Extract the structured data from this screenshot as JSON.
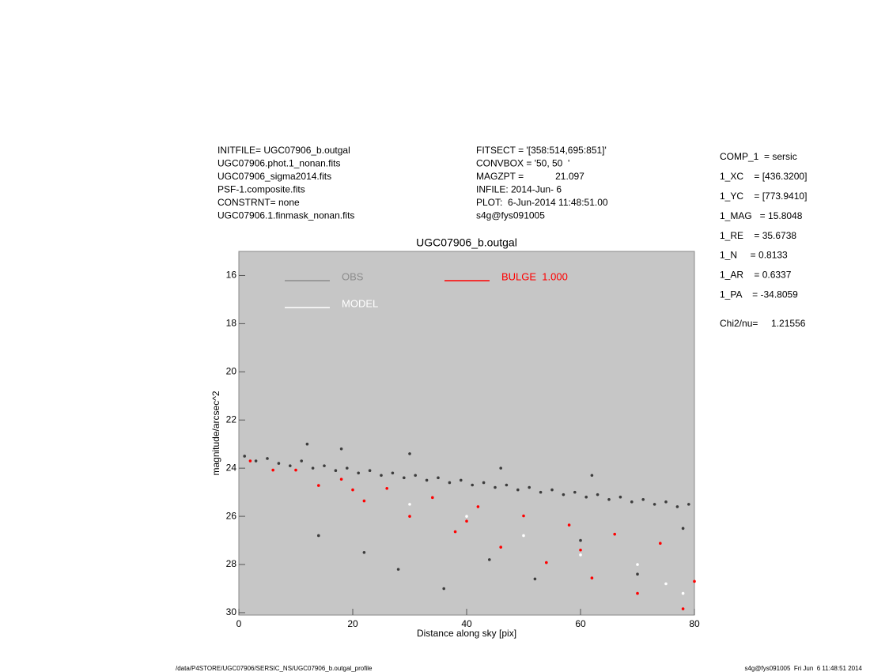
{
  "header": {
    "left": [
      "INITFILE= UGC07906_b.outgal",
      "UGC07906.phot.1_nonan.fits",
      "UGC07906_sigma2014.fits",
      "PSF-1.composite.fits",
      "CONSTRNT= none",
      "UGC07906.1.finmask_nonan.fits"
    ],
    "middle": [
      "FITSECT = '[358:514,695:851]'",
      "CONVBOX = '50, 50  '",
      "MAGZPT =            21.097",
      "INFILE: 2014-Jun- 6",
      "PLOT:  6-Jun-2014 11:48:51.00",
      "s4g@fys091005"
    ]
  },
  "params": [
    "COMP_1  = sersic",
    "1_XC    = [436.3200]",
    "1_YC    = [773.9410]",
    "1_MAG   = 15.8048",
    "1_RE    = 35.6738",
    "1_N     = 0.8133",
    "1_AR    = 0.6337",
    "1_PA    = -34.8059",
    "Chi2/nu=     1.21556"
  ],
  "footer": {
    "left": "/data/P4STORE/UGC07906/SERSIC_NS/UGC07906_b.outgal_profile",
    "right": "s4g@fys091005  Fri Jun  6 11:48:51 2014"
  },
  "chart_data": {
    "type": "scatter",
    "title": "UGC07906_b.outgal",
    "xlabel": "Distance along sky [pix]",
    "ylabel": "magnitude/arcsec^2",
    "xlim": [
      0,
      80
    ],
    "ylim": [
      30.1,
      15
    ],
    "xticks": [
      0,
      20,
      40,
      60,
      80
    ],
    "yticks": [
      16,
      18,
      20,
      22,
      24,
      26,
      28,
      30
    ],
    "background": "#c6c6c6",
    "series": [
      {
        "name": "OBS",
        "color": "#3c3c3c",
        "legend_color": "#8c8c8c",
        "x": [
          1,
          3,
          5,
          7,
          9,
          11,
          13,
          15,
          17,
          19,
          21,
          23,
          25,
          27,
          29,
          31,
          33,
          35,
          37,
          39,
          41,
          43,
          45,
          47,
          49,
          51,
          53,
          55,
          57,
          59,
          61,
          63,
          65,
          67,
          69,
          71,
          73,
          75,
          77,
          79,
          14,
          22,
          28,
          36,
          44,
          52,
          60,
          70,
          78,
          12,
          18,
          30,
          46,
          62
        ],
        "values": [
          23.5,
          23.7,
          23.6,
          23.8,
          23.9,
          23.7,
          24.0,
          23.9,
          24.1,
          24.0,
          24.2,
          24.1,
          24.3,
          24.2,
          24.4,
          24.3,
          24.5,
          24.4,
          24.6,
          24.5,
          24.7,
          24.6,
          24.8,
          24.7,
          24.9,
          24.8,
          25.0,
          24.9,
          25.1,
          25.0,
          25.2,
          25.1,
          25.3,
          25.2,
          25.4,
          25.3,
          25.5,
          25.4,
          25.6,
          25.5,
          26.8,
          27.5,
          28.2,
          29.0,
          27.8,
          28.6,
          27.0,
          28.4,
          26.5,
          23.0,
          23.2,
          23.4,
          24.0,
          24.3
        ]
      },
      {
        "name": "MODEL",
        "color": "#ffffff",
        "legend_color": "#ffffff",
        "x": [
          30,
          40,
          50,
          60,
          70,
          75,
          78
        ],
        "values": [
          25.5,
          26.0,
          26.8,
          27.6,
          28.0,
          28.8,
          29.2
        ]
      },
      {
        "name": "BULGE  1.000",
        "color": "#ff0000",
        "legend_color": "#ff0000",
        "x": [
          2,
          6,
          10,
          14,
          18,
          22,
          26,
          30,
          34,
          38,
          42,
          46,
          50,
          54,
          58,
          62,
          66,
          70,
          74,
          78,
          20,
          40,
          60,
          80
        ],
        "values": [
          23.7,
          24.08,
          24.08,
          24.72,
          24.46,
          25.36,
          24.84,
          26.0,
          25.22,
          26.64,
          25.6,
          27.28,
          25.98,
          27.92,
          26.36,
          28.56,
          26.74,
          29.2,
          27.12,
          29.84,
          24.9,
          26.2,
          27.4,
          28.7
        ]
      }
    ]
  }
}
